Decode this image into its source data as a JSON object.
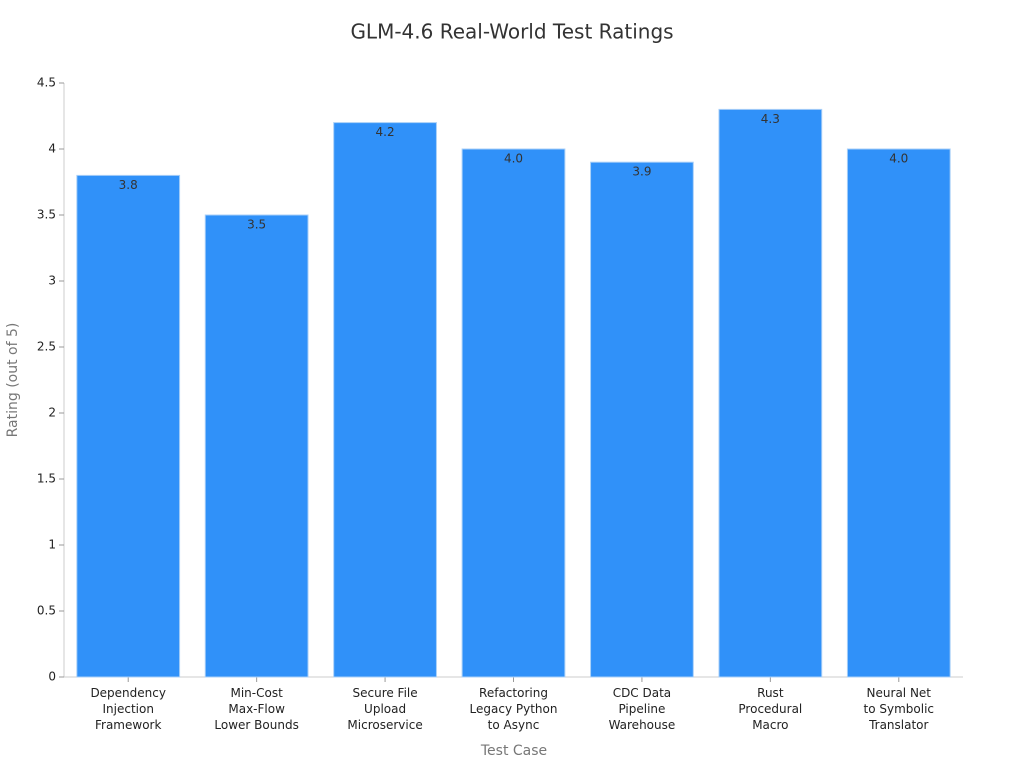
{
  "chart_data": {
    "type": "bar",
    "title": "GLM-4.6 Real-World Test Ratings",
    "x_label": "Test Case",
    "y_label": "Rating (out of 5)",
    "categories": [
      "Dependency\nInjection\nFramework",
      "Min-Cost\nMax-Flow\nLower Bounds",
      "Secure File\nUpload\nMicroservice",
      "Refactoring\nLegacy Python\nto Async",
      "CDC Data\nPipeline\nWarehouse",
      "Rust\nProcedural\nMacro",
      "Neural Net\nto Symbolic\nTranslator"
    ],
    "values": [
      3.8,
      3.5,
      4.2,
      4.0,
      3.9,
      4.3,
      4.0
    ],
    "value_labels": [
      "3.8",
      "3.5",
      "4.2",
      "4.0",
      "3.9",
      "4.3",
      "4.0"
    ],
    "color": "#3091f9",
    "ylim": [
      0,
      4.5
    ],
    "yticks": [
      0,
      0.5,
      1,
      1.5,
      2,
      2.5,
      3,
      3.5,
      4,
      4.5
    ],
    "grid": false
  }
}
